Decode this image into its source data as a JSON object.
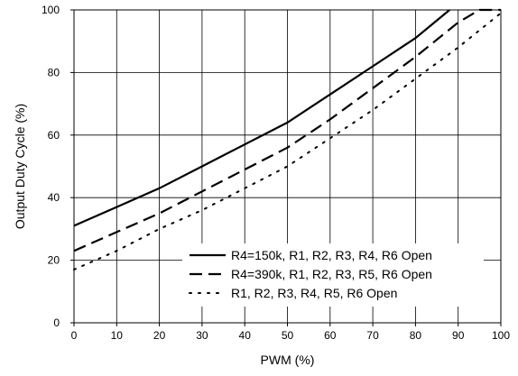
{
  "chart_data": {
    "type": "line",
    "xlabel": "PWM (%)",
    "ylabel": "Output Duty Cycle (%)",
    "xlim": [
      0,
      100
    ],
    "ylim": [
      0,
      100
    ],
    "x_ticks": [
      "0",
      "10",
      "20",
      "30",
      "40",
      "50",
      "60",
      "70",
      "80",
      "90",
      "100"
    ],
    "y_ticks": [
      "0",
      "20",
      "40",
      "60",
      "80",
      "100"
    ],
    "grid": true,
    "legend_position": "bottom-right",
    "series": [
      {
        "name": "R4=150k, R1, R2, R3, R4, R6 Open",
        "style": "solid",
        "x": [
          0,
          10,
          20,
          30,
          40,
          50,
          60,
          70,
          80,
          88
        ],
        "y": [
          31,
          37,
          43,
          50,
          57,
          64,
          73,
          82,
          91,
          100
        ]
      },
      {
        "name": "R4=390k, R1, R2, R3, R5, R6 Open",
        "style": "dashed",
        "x": [
          0,
          10,
          20,
          30,
          40,
          50,
          60,
          70,
          80,
          90,
          95,
          100
        ],
        "y": [
          23,
          29,
          35,
          42,
          49,
          56,
          65,
          75,
          85,
          96,
          100,
          100
        ]
      },
      {
        "name": "R1, R2, R3, R4, R5, R6 Open",
        "style": "dotted",
        "x": [
          0,
          10,
          20,
          30,
          40,
          50,
          60,
          70,
          80,
          90,
          100
        ],
        "y": [
          17,
          23,
          30,
          36,
          43,
          50,
          59,
          68,
          78,
          88,
          99
        ]
      }
    ]
  }
}
